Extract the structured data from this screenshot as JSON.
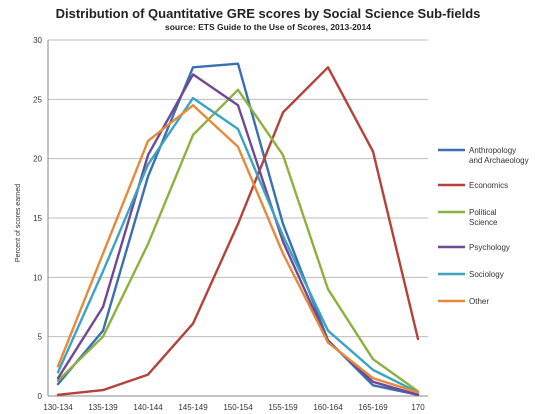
{
  "chart_data": {
    "type": "line",
    "title": "Distribution of Quantitative GRE scores by Social Science Sub-fields",
    "subtitle": "source: ETS Guide to the Use of Scores, 2013-2014",
    "xlabel": "",
    "ylabel": "Percent of scores earned",
    "ylim": [
      0,
      30
    ],
    "yticks": [
      0,
      5,
      10,
      15,
      20,
      25,
      30
    ],
    "grid": true,
    "legend_position": "right",
    "categories": [
      "130-134",
      "135-139",
      "140-144",
      "145-149",
      "150-154",
      "155-159",
      "160-164",
      "165-169",
      "170"
    ],
    "series": [
      {
        "name": "Anthropology and Archaeology",
        "color": "#3a6fb0",
        "values": [
          1.0,
          5.5,
          18.5,
          27.7,
          28.0,
          14.5,
          4.7,
          0.9,
          0.1
        ]
      },
      {
        "name": "Economics",
        "color": "#b5413b",
        "values": [
          0.1,
          0.5,
          1.8,
          6.1,
          14.5,
          23.9,
          27.7,
          20.6,
          4.8
        ]
      },
      {
        "name": "Political Science",
        "color": "#8db13f",
        "values": [
          1.3,
          5.0,
          12.8,
          22.0,
          25.8,
          20.3,
          9.0,
          3.1,
          0.4
        ]
      },
      {
        "name": "Psychology",
        "color": "#6f4a93",
        "values": [
          1.5,
          7.5,
          20.3,
          27.1,
          24.5,
          13.0,
          4.6,
          1.2,
          0.1
        ]
      },
      {
        "name": "Sociology",
        "color": "#3da3c4",
        "values": [
          2.0,
          10.5,
          19.5,
          25.1,
          22.5,
          13.5,
          5.5,
          2.2,
          0.3
        ]
      },
      {
        "name": "Other",
        "color": "#e58a3b",
        "values": [
          2.5,
          12.0,
          21.5,
          24.5,
          21.0,
          12.0,
          4.5,
          1.5,
          0.3
        ]
      }
    ]
  }
}
